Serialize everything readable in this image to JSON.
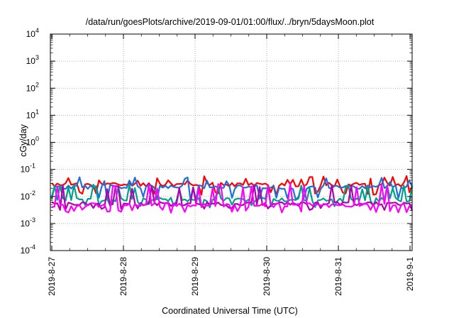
{
  "chart_data": {
    "type": "line",
    "title": "/data/run/goesPlots/archive/2019-09-01/01:00/flux/../bryn/5daysMoon.plot",
    "xlabel": "Coordinated Universal Time (UTC)",
    "ylabel": "cGy/day",
    "yscale": "log",
    "ylim": [
      0.0001,
      10000
    ],
    "xlim": [
      "2019-08-27",
      "2019-09-01 01:00"
    ],
    "grid": true,
    "x_ticks": [
      "2019-8-27",
      "2019-8-28",
      "2019-8-29",
      "2019-8-30",
      "2019-8-31",
      "2019-9-1"
    ],
    "y_ticks": [
      {
        "base": "10",
        "exp": "-4"
      },
      {
        "base": "10",
        "exp": "-3"
      },
      {
        "base": "10",
        "exp": "-2"
      },
      {
        "base": "10",
        "exp": "-1"
      },
      {
        "base": "10",
        "exp": "0"
      },
      {
        "base": "10",
        "exp": "1"
      },
      {
        "base": "10",
        "exp": "2"
      },
      {
        "base": "10",
        "exp": "3"
      },
      {
        "base": "10",
        "exp": "4"
      }
    ],
    "series": [
      {
        "color": "#ff0000",
        "baseline": 0.027,
        "spike": 0.05,
        "dip": 0.014,
        "seed": 11
      },
      {
        "color": "#1f6fd6",
        "baseline": 0.022,
        "spike": 0.045,
        "dip": 0.009,
        "seed": 23
      },
      {
        "color": "#00a08a",
        "baseline": 0.0075,
        "spike": 0.024,
        "dip": 0.0048,
        "seed": 37
      },
      {
        "color": "#b000b0",
        "baseline": 0.0052,
        "spike": 0.024,
        "dip": 0.0037,
        "seed": 41
      },
      {
        "color": "#ff00ff",
        "baseline": 0.0047,
        "spike": 0.026,
        "dip": 0.003,
        "seed": 53
      }
    ]
  }
}
